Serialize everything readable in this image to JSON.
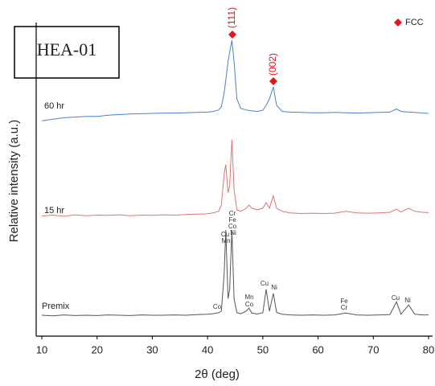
{
  "chart_data": {
    "type": "line",
    "label": "HEA-01",
    "xlabel": "2θ (deg)",
    "ylabel": "Relative intensity (a.u.)",
    "legend": [
      {
        "name": "FCC",
        "color": "#e8141c",
        "marker": "diamond"
      }
    ],
    "legend_position": "top-right",
    "xlim": [
      10,
      80
    ],
    "xticks": [
      10,
      20,
      30,
      40,
      50,
      60,
      70,
      80
    ],
    "ylim": [
      0,
      100
    ],
    "x": [
      10,
      12,
      14,
      16,
      18,
      20,
      22,
      24,
      26,
      28,
      30,
      32,
      34,
      36,
      38,
      40,
      41,
      42,
      42.5,
      43,
      43.3,
      43.7,
      44,
      44.4,
      44.8,
      45.3,
      46,
      47,
      47.5,
      48,
      49,
      50,
      50.6,
      51.2,
      51.9,
      52.5,
      53.5,
      55,
      57,
      59,
      61,
      63,
      65,
      67,
      69,
      71,
      73,
      74.2,
      75,
      76.4,
      77.5,
      79,
      80
    ],
    "series": [
      {
        "name": "60 hr",
        "color": "#4a7fd4",
        "values": [
          69,
          69.5,
          70,
          70.2,
          70.4,
          70.4,
          70.8,
          71,
          71.2,
          71.3,
          71.4,
          71.5,
          71.5,
          71.6,
          71.7,
          71.8,
          72,
          72.5,
          73.5,
          78,
          82,
          88,
          91,
          94.8,
          88,
          76,
          73,
          72.5,
          72.3,
          72.2,
          72,
          72.4,
          74,
          76,
          79.9,
          74,
          72,
          71.8,
          71.7,
          71.6,
          71.6,
          71.7,
          71.6,
          71.5,
          71.6,
          71.7,
          71.8,
          72.8,
          72,
          71.8,
          71.7,
          71.5,
          71.4
        ]
      },
      {
        "name": "15 hr",
        "color": "#e07272",
        "values": [
          38.5,
          38.8,
          38.4,
          38.9,
          38.6,
          38.8,
          38.7,
          38.9,
          38.6,
          38.8,
          38.7,
          38.9,
          38.8,
          39,
          39.1,
          39.2,
          39.5,
          40,
          42,
          52,
          55,
          46,
          48,
          63,
          47,
          40.5,
          40,
          41,
          42,
          41,
          40.5,
          41,
          42.8,
          41,
          45,
          41,
          40,
          39.5,
          39.3,
          39.4,
          39.3,
          39.4,
          40,
          39.5,
          39.4,
          39.5,
          39.7,
          40.7,
          39.8,
          41,
          40,
          39.7,
          39.6
        ]
      },
      {
        "name": "Premix",
        "color": "#555555",
        "values": [
          6.7,
          6.5,
          6.8,
          6.6,
          6.7,
          6.6,
          6.8,
          6.7,
          6.6,
          6.8,
          6.7,
          6.7,
          6.8,
          6.7,
          6.9,
          7,
          7.2,
          7.5,
          8,
          20,
          34,
          12,
          15,
          34,
          12,
          7.5,
          7.2,
          8,
          9,
          7.4,
          7.1,
          7.5,
          15,
          8,
          13.7,
          7.6,
          7,
          6.8,
          6.7,
          6.8,
          6.7,
          6.8,
          7.4,
          6.8,
          6.7,
          6.8,
          6.9,
          11,
          7,
          10,
          7,
          6.8,
          6.8
        ]
      }
    ],
    "annotations": [
      "(111)",
      "(002)",
      "Co",
      "Cu",
      "Mn",
      "Cr",
      "Fe",
      "Co",
      "Ni",
      "Mn",
      "Co",
      "Cu",
      "Ni",
      "Fe",
      "Cr",
      "Cu",
      "Ni"
    ]
  }
}
